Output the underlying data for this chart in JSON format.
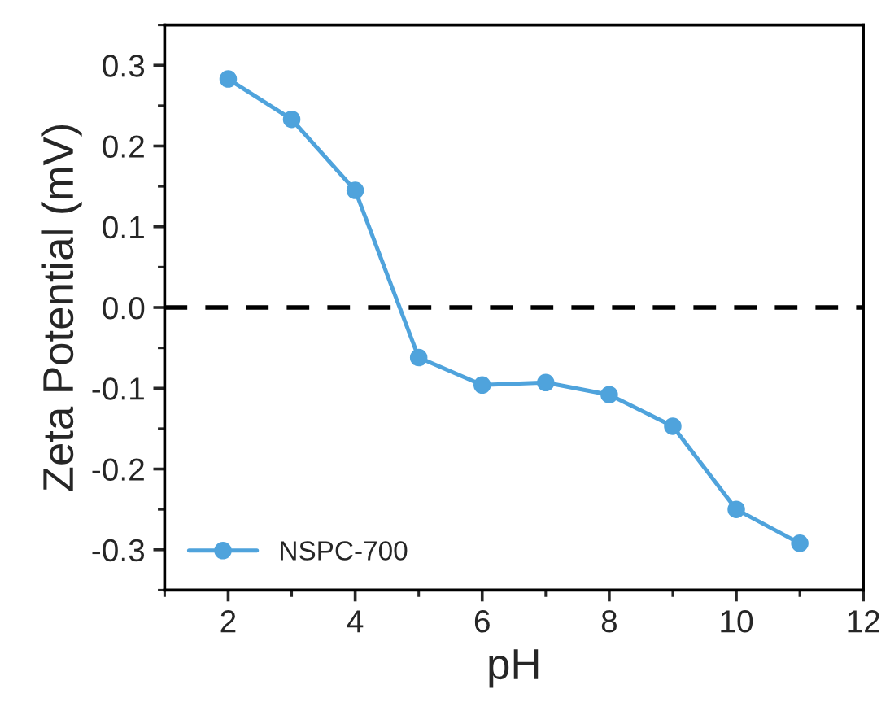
{
  "chart_data": {
    "type": "line",
    "xlabel": "pH",
    "ylabel": "Zeta Potential (mV)",
    "x": [
      2,
      3,
      4,
      5,
      6,
      7,
      8,
      9,
      10,
      11
    ],
    "series": [
      {
        "name": "NSPC-700",
        "color": "#4fa3dc",
        "values": [
          0.283,
          0.233,
          0.145,
          -0.062,
          -0.096,
          -0.093,
          -0.108,
          -0.147,
          -0.25,
          -0.292
        ]
      }
    ],
    "xlim": [
      1,
      12
    ],
    "xticks": [
      2,
      4,
      6,
      8,
      10,
      12
    ],
    "ylim": [
      -0.35,
      0.35
    ],
    "yticks": [
      {
        "value": -0.3,
        "label": "-0.3"
      },
      {
        "value": -0.2,
        "label": "-0.2"
      },
      {
        "value": -0.1,
        "label": "-0.1"
      },
      {
        "value": 0,
        "label": "0.0"
      },
      {
        "value": 0.1,
        "label": "0.1"
      },
      {
        "value": 0.2,
        "label": "0.2"
      },
      {
        "value": 0.3,
        "label": "0.3"
      }
    ],
    "ref_lines": [
      {
        "axis": "y",
        "value": 0,
        "color": "#000000",
        "line_style": "dashed"
      }
    ],
    "marker": "circle",
    "line_style": "solid",
    "grid": false,
    "legend": "bottom left"
  }
}
